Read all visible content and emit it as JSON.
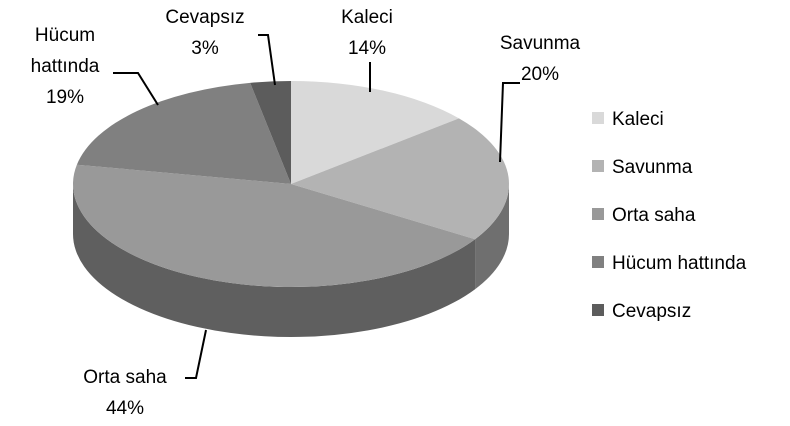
{
  "chart_data": {
    "type": "pie",
    "categories": [
      "Kaleci",
      "Savunma",
      "Orta saha",
      "Hücum hattında",
      "Cevapsız"
    ],
    "values": [
      14,
      20,
      44,
      19,
      3
    ],
    "value_labels": [
      "14%",
      "20%",
      "44%",
      "19%",
      "3%"
    ],
    "colors": [
      "#d9d9d9",
      "#b3b3b3",
      "#999999",
      "#808080",
      "#5c5c5c"
    ],
    "legend": "right"
  }
}
